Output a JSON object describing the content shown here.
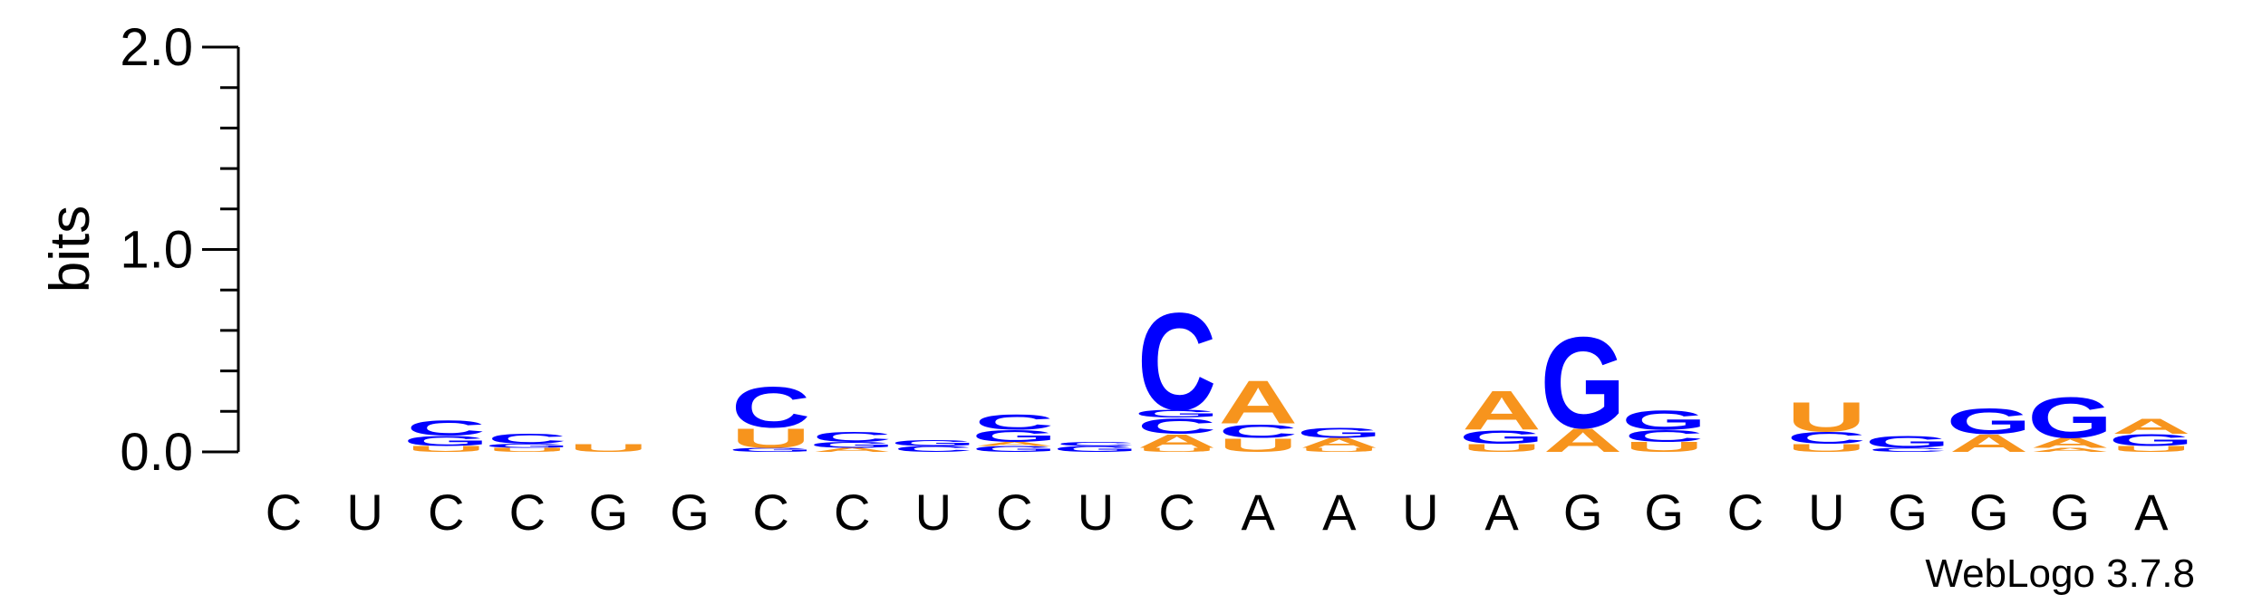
{
  "chart_data": {
    "type": "sequence-logo",
    "ylabel": "bits",
    "ylim": [
      0,
      2.0
    ],
    "y_ticks": [
      "0.0",
      "1.0",
      "2.0"
    ],
    "x_labels": [
      "C",
      "U",
      "C",
      "C",
      "G",
      "G",
      "C",
      "C",
      "U",
      "C",
      "U",
      "C",
      "A",
      "A",
      "U",
      "A",
      "G",
      "G",
      "C",
      "U",
      "G",
      "G",
      "G",
      "A"
    ],
    "colors": {
      "A": "#F7941D",
      "U": "#F7941D",
      "C": "#0000FF",
      "G": "#0000FF"
    },
    "positions": [
      [],
      [],
      [
        [
          "U",
          0.03
        ],
        [
          "G",
          0.05
        ],
        [
          "C",
          0.08
        ]
      ],
      [
        [
          "U",
          0.02
        ],
        [
          "G",
          0.02
        ],
        [
          "C",
          0.05
        ]
      ],
      [
        [
          "U",
          0.04
        ]
      ],
      [],
      [
        [
          "G",
          0.02
        ],
        [
          "U",
          0.1
        ],
        [
          "C",
          0.21
        ]
      ],
      [
        [
          "A",
          0.02
        ],
        [
          "G",
          0.03
        ],
        [
          "C",
          0.05
        ]
      ],
      [
        [
          "C",
          0.03
        ],
        [
          "G",
          0.03
        ]
      ],
      [
        [
          "G",
          0.03
        ],
        [
          "A",
          0.02
        ],
        [
          "G",
          0.06
        ],
        [
          "C",
          0.08
        ]
      ],
      [
        [
          "G",
          0.03
        ],
        [
          "C",
          0.02
        ]
      ],
      [
        [
          "U",
          0.02
        ],
        [
          "A",
          0.07
        ],
        [
          "C",
          0.08
        ],
        [
          "G",
          0.04
        ],
        [
          "C",
          0.5
        ]
      ],
      [
        [
          "U",
          0.07
        ],
        [
          "C",
          0.07
        ],
        [
          "A",
          0.22
        ]
      ],
      [
        [
          "U",
          0.02
        ],
        [
          "A",
          0.05
        ],
        [
          "G",
          0.05
        ]
      ],
      [],
      [
        [
          "U",
          0.04
        ],
        [
          "G",
          0.07
        ],
        [
          "A",
          0.2
        ]
      ],
      [
        [
          "A",
          0.12
        ],
        [
          "G",
          0.47
        ]
      ],
      [
        [
          "U",
          0.05
        ],
        [
          "C",
          0.06
        ],
        [
          "G",
          0.1
        ]
      ],
      [],
      [
        [
          "U",
          0.04
        ],
        [
          "C",
          0.06
        ],
        [
          "U",
          0.15
        ]
      ],
      [
        [
          "C",
          0.02
        ],
        [
          "G",
          0.06
        ]
      ],
      [
        [
          "A",
          0.09
        ],
        [
          "G",
          0.13
        ]
      ],
      [
        [
          "A",
          0.02
        ],
        [
          "A",
          0.05
        ],
        [
          "G",
          0.21
        ]
      ],
      [
        [
          "U",
          0.03
        ],
        [
          "G",
          0.06
        ],
        [
          "A",
          0.08
        ]
      ]
    ]
  },
  "credit": "WebLogo 3.7.8"
}
